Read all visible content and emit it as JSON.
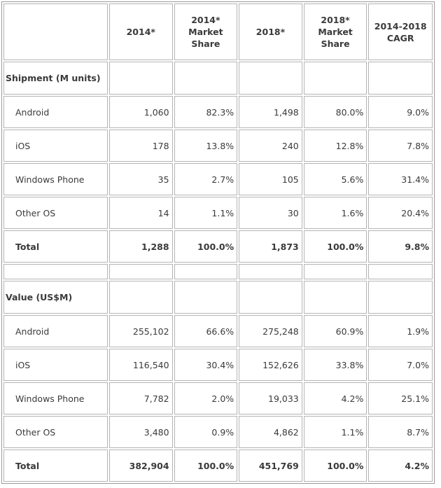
{
  "table": {
    "headers": [
      "",
      "2014*",
      "2014*\nMarket\nShare",
      "2018*",
      "2018*\nMarket\nShare",
      "2014-2018\nCAGR"
    ],
    "sections": [
      {
        "title": "Shipment (M units)",
        "rows": [
          {
            "label": "Android",
            "cells": [
              "1,060",
              "82.3%",
              "1,498",
              "80.0%",
              "9.0%"
            ]
          },
          {
            "label": "iOS",
            "cells": [
              "178",
              "13.8%",
              "240",
              "12.8%",
              "7.8%"
            ]
          },
          {
            "label": "Windows Phone",
            "cells": [
              "35",
              "2.7%",
              "105",
              "5.6%",
              "31.4%"
            ]
          },
          {
            "label": "Other OS",
            "cells": [
              "14",
              "1.1%",
              "30",
              "1.6%",
              "20.4%"
            ]
          }
        ],
        "total": {
          "label": "Total",
          "cells": [
            "1,288",
            "100.0%",
            "1,873",
            "100.0%",
            "9.8%"
          ]
        }
      },
      {
        "title": "Value (US$M)",
        "rows": [
          {
            "label": "Android",
            "cells": [
              "255,102",
              "66.6%",
              "275,248",
              "60.9%",
              "1.9%"
            ]
          },
          {
            "label": "iOS",
            "cells": [
              "116,540",
              "30.4%",
              "152,626",
              "33.8%",
              "7.0%"
            ]
          },
          {
            "label": "Windows Phone",
            "cells": [
              "7,782",
              "2.0%",
              "19,033",
              "4.2%",
              "25.1%"
            ]
          },
          {
            "label": "Other OS",
            "cells": [
              "3,480",
              "0.9%",
              "4,862",
              "1.1%",
              "8.7%"
            ]
          }
        ],
        "total": {
          "label": "Total",
          "cells": [
            "382,904",
            "100.0%",
            "451,769",
            "100.0%",
            "4.2%"
          ]
        }
      }
    ]
  }
}
